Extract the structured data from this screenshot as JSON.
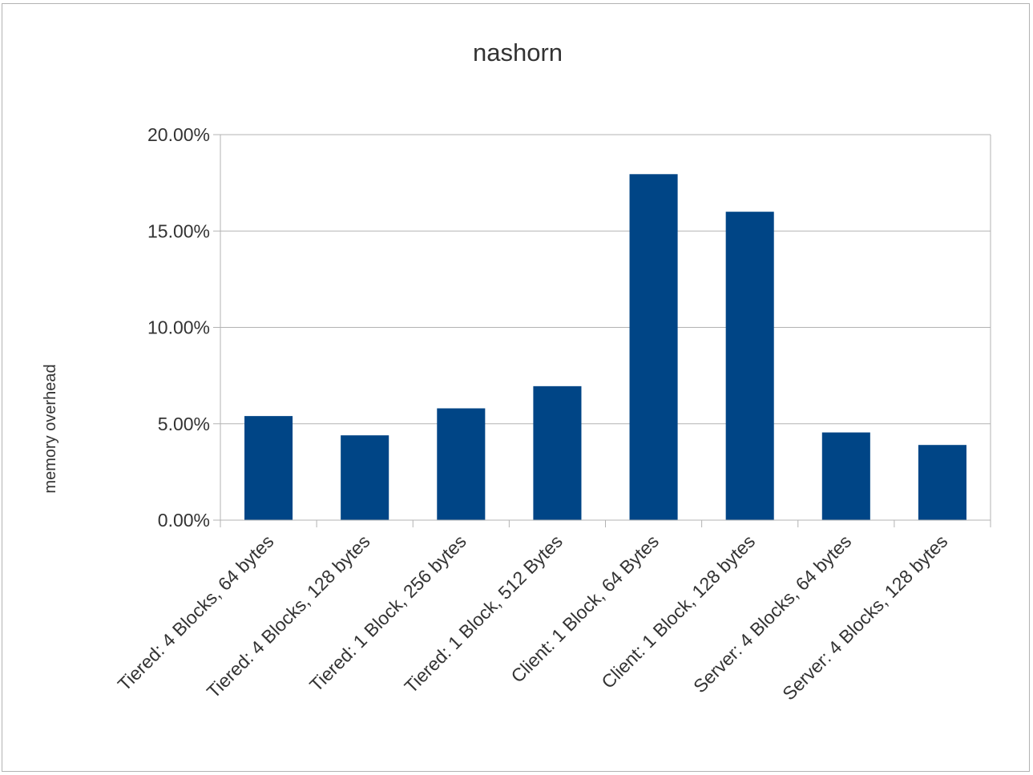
{
  "chart_data": {
    "type": "bar",
    "title": "nashorn",
    "xlabel": "",
    "ylabel": "memory overhead",
    "categories": [
      "Tiered: 4 Blocks, 64 bytes",
      "Tiered: 4 Blocks, 128 bytes",
      "Tiered: 1 Block, 256 bytes",
      "Tiered: 1 Block, 512 Bytes",
      "Client: 1 Block, 64 Bytes",
      "Client: 1 Block, 128 bytes",
      "Server: 4 Blocks, 64 bytes",
      "Server: 4 Blocks, 128 bytes"
    ],
    "values": [
      5.4,
      4.4,
      5.8,
      6.95,
      17.95,
      16.0,
      4.55,
      3.9
    ],
    "value_unit": "%",
    "ylim": [
      0,
      20
    ],
    "yticks": [
      0,
      5,
      10,
      15,
      20
    ],
    "ytick_labels": [
      "0.00%",
      "5.00%",
      "10.00%",
      "15.00%",
      "20.00%"
    ],
    "grid": "horizontal",
    "legend": "none",
    "colors": {
      "bar": "#004586",
      "grid": "#b3b3b3",
      "axis": "#b3b3b3",
      "text": "#333333"
    }
  }
}
